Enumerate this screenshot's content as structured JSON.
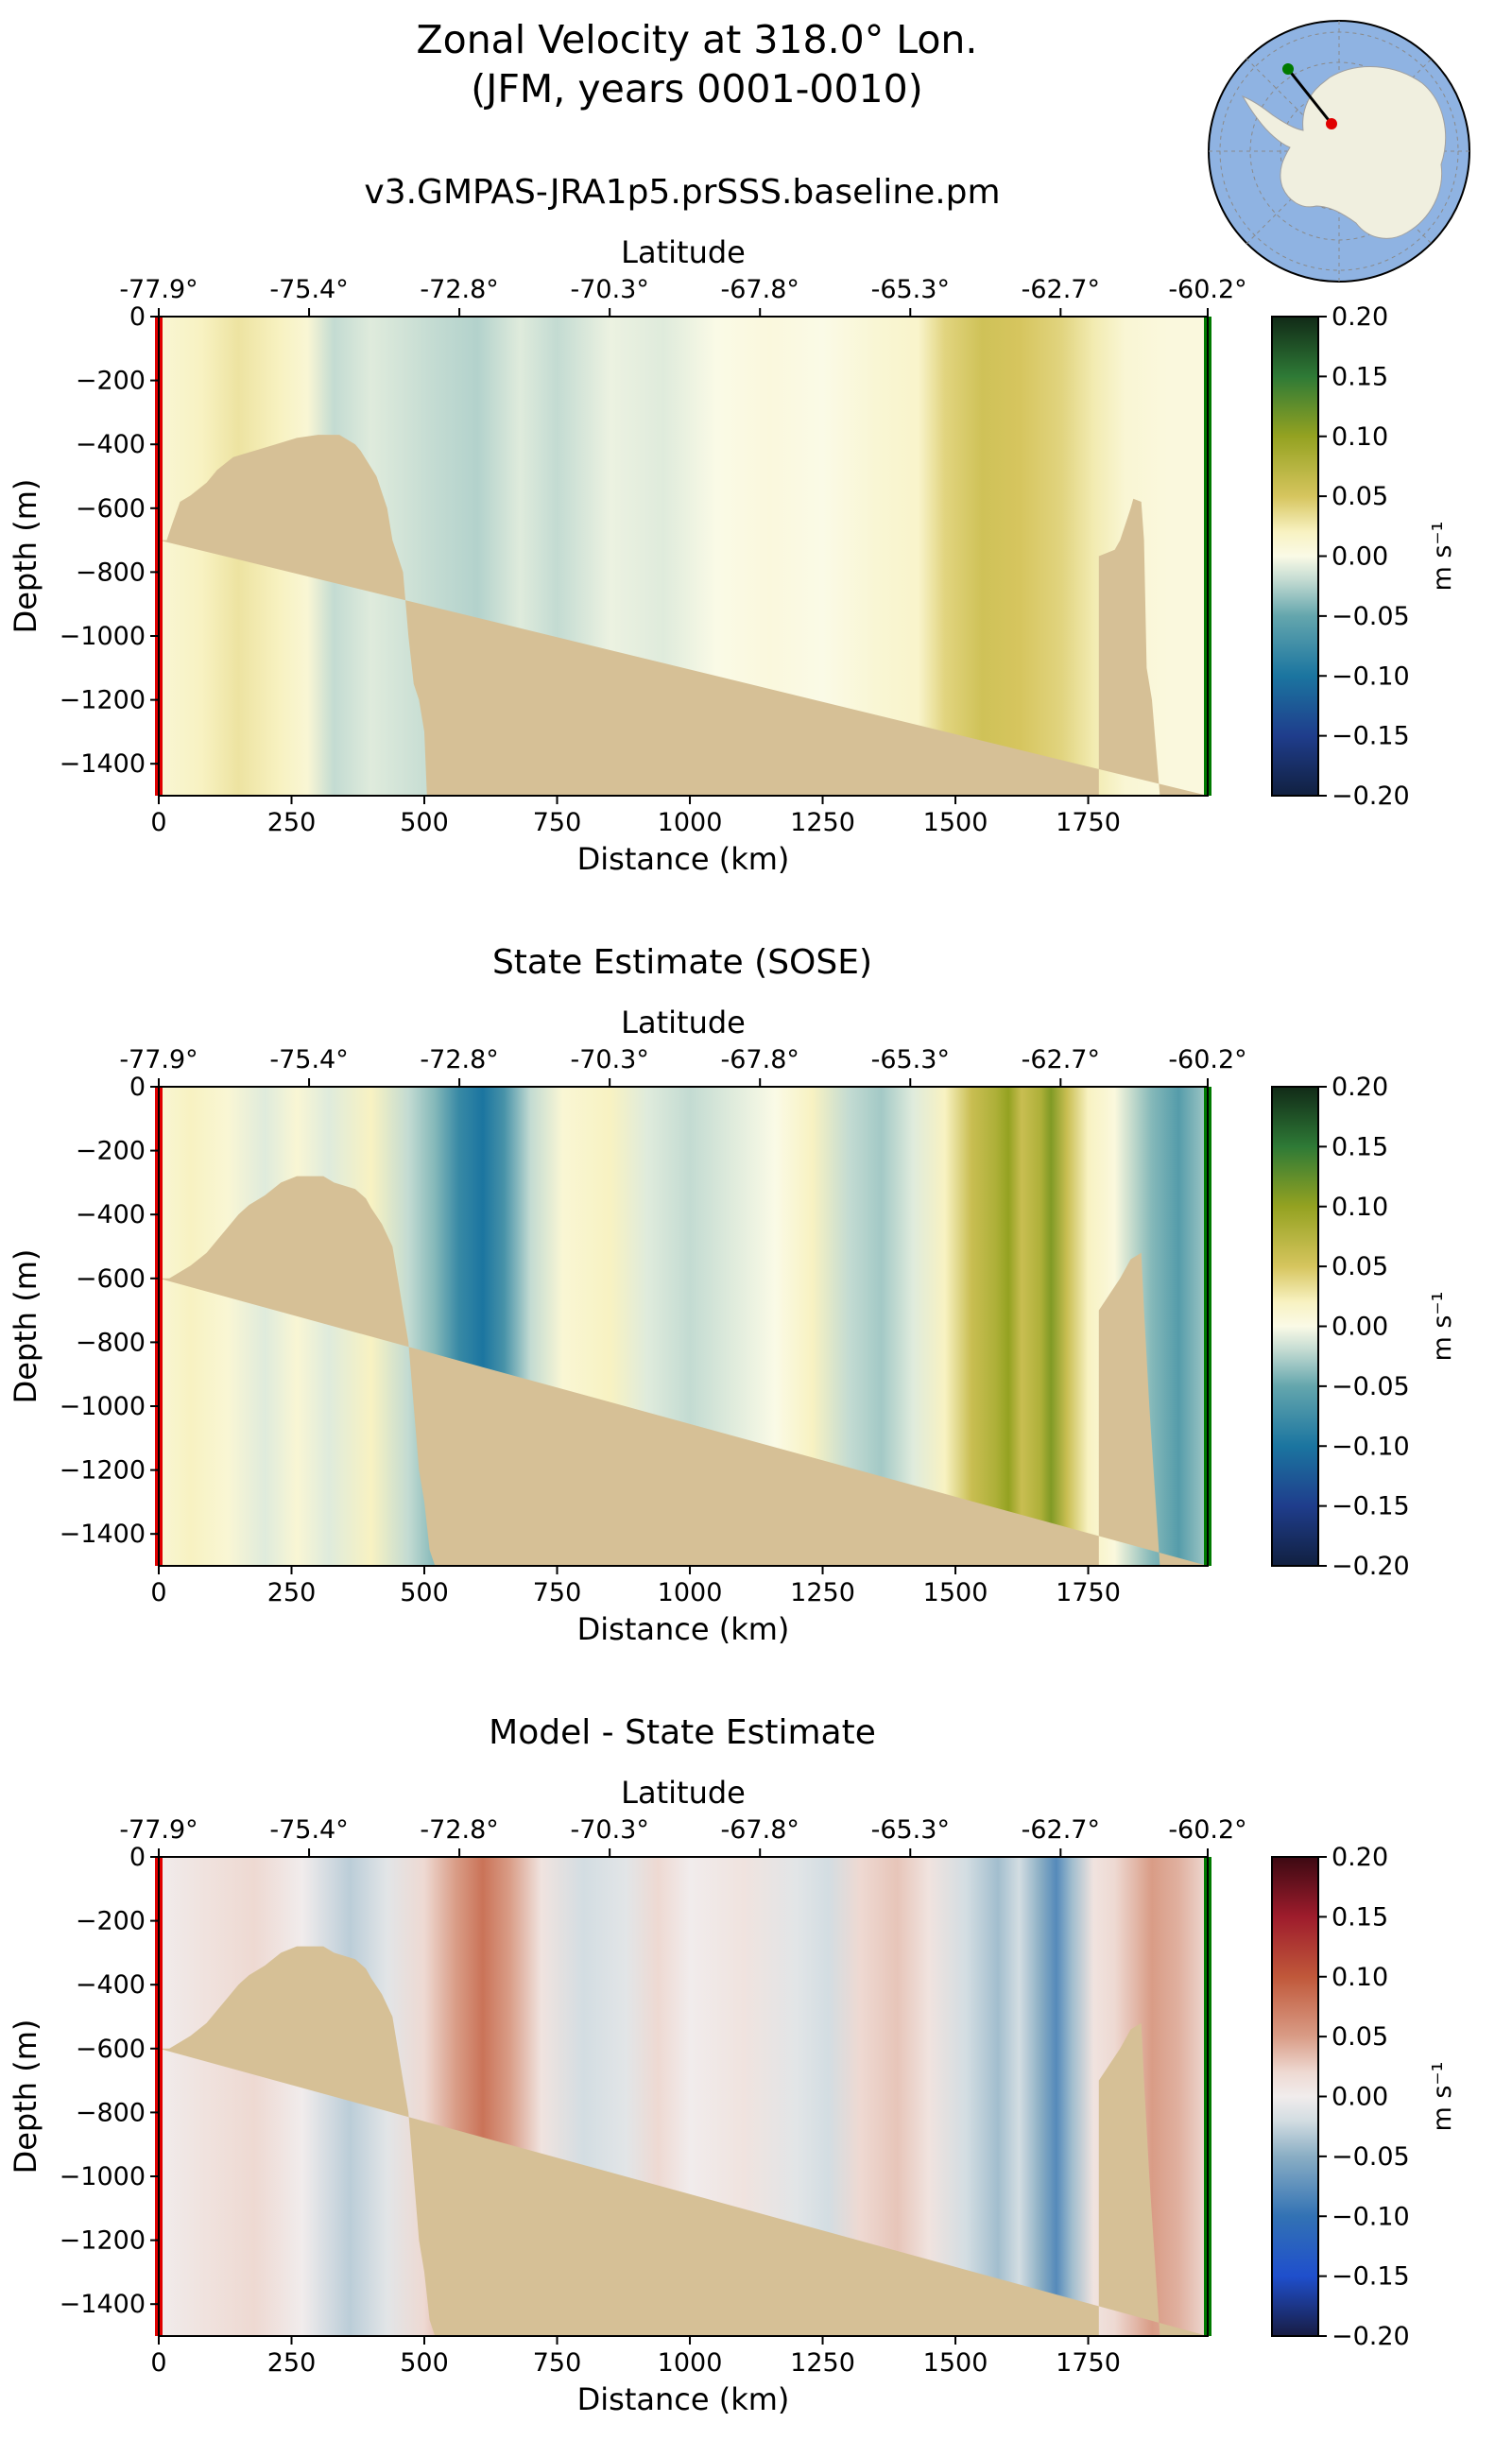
{
  "figure": {
    "title_line1": "Zonal Velocity at 318.0° Lon.",
    "title_line2": "(JFM, years 0001-0010)"
  },
  "colors": {
    "bathymetry": "#d6c096",
    "start_marker": "#e00000",
    "end_marker": "#007a00",
    "ocean": "#8fb3e2",
    "land": "#f0efdf"
  },
  "chart_data": [
    {
      "type": "heatmap",
      "panel": "model",
      "title": "v3.GMPAS-JRA1p5.prSSS.baseline.pm",
      "xlabel": "Distance (km)",
      "ylabel": "Depth (m)",
      "top_xlabel": "Latitude",
      "xlim": [
        0,
        1975
      ],
      "ylim": [
        -1500,
        0
      ],
      "x_ticks": [
        0,
        250,
        500,
        750,
        1000,
        1250,
        1500,
        1750
      ],
      "y_ticks": [
        0,
        -200,
        -400,
        -600,
        -800,
        -1000,
        -1200,
        -1400
      ],
      "lat_ticks": [
        "-77.9°",
        "-75.4°",
        "-72.8°",
        "-70.3°",
        "-67.8°",
        "-65.3°",
        "-62.7°",
        "-60.2°"
      ],
      "lat_tick_positions_km": [
        0,
        283,
        566,
        849,
        1132,
        1415,
        1698,
        1975
      ],
      "colormap": "delta",
      "colorbar": {
        "label": "m s⁻¹",
        "range": [
          -0.2,
          0.2
        ],
        "ticks": [
          0.2,
          0.15,
          0.1,
          0.05,
          0.0,
          -0.05,
          -0.1,
          -0.15,
          -0.2
        ]
      },
      "velocity_profile": [
        [
          0,
          0.01
        ],
        [
          80,
          0.02
        ],
        [
          150,
          0.03
        ],
        [
          230,
          0.02
        ],
        [
          280,
          0.01
        ],
        [
          330,
          -0.02
        ],
        [
          400,
          -0.01
        ],
        [
          460,
          -0.015
        ],
        [
          520,
          -0.02
        ],
        [
          600,
          -0.025
        ],
        [
          680,
          -0.01
        ],
        [
          750,
          -0.02
        ],
        [
          850,
          -0.005
        ],
        [
          950,
          -0.01
        ],
        [
          1050,
          0
        ],
        [
          1150,
          0.005
        ],
        [
          1250,
          0
        ],
        [
          1350,
          0.01
        ],
        [
          1430,
          0.015
        ],
        [
          1480,
          0.04
        ],
        [
          1550,
          0.055
        ],
        [
          1620,
          0.05
        ],
        [
          1700,
          0.04
        ],
        [
          1760,
          0.025
        ],
        [
          1820,
          0.01
        ],
        [
          1900,
          0.005
        ],
        [
          1975,
          0.005
        ]
      ],
      "bathymetry_depth_m": [
        [
          0,
          -700
        ],
        [
          15,
          -700
        ],
        [
          25,
          -650
        ],
        [
          40,
          -580
        ],
        [
          60,
          -560
        ],
        [
          90,
          -520
        ],
        [
          110,
          -480
        ],
        [
          140,
          -440
        ],
        [
          180,
          -420
        ],
        [
          220,
          -400
        ],
        [
          260,
          -380
        ],
        [
          300,
          -370
        ],
        [
          340,
          -370
        ],
        [
          370,
          -400
        ],
        [
          380,
          -420
        ],
        [
          410,
          -500
        ],
        [
          430,
          -600
        ],
        [
          440,
          -700
        ],
        [
          460,
          -800
        ],
        [
          470,
          -1000
        ],
        [
          480,
          -1150
        ],
        [
          490,
          -1200
        ],
        [
          500,
          -1300
        ],
        [
          505,
          -1500
        ],
        [
          1770,
          -1500
        ],
        [
          1770,
          -750
        ],
        [
          1800,
          -730
        ],
        [
          1810,
          -700
        ],
        [
          1820,
          -650
        ],
        [
          1830,
          -600
        ],
        [
          1835,
          -570
        ],
        [
          1850,
          -580
        ],
        [
          1855,
          -700
        ],
        [
          1860,
          -1100
        ],
        [
          1870,
          -1200
        ],
        [
          1885,
          -1500
        ],
        [
          1975,
          -1500
        ]
      ]
    },
    {
      "type": "heatmap",
      "panel": "sose",
      "title": "State Estimate (SOSE)",
      "xlabel": "Distance (km)",
      "ylabel": "Depth (m)",
      "top_xlabel": "Latitude",
      "xlim": [
        0,
        1975
      ],
      "ylim": [
        -1500,
        0
      ],
      "x_ticks": [
        0,
        250,
        500,
        750,
        1000,
        1250,
        1500,
        1750
      ],
      "y_ticks": [
        0,
        -200,
        -400,
        -600,
        -800,
        -1000,
        -1200,
        -1400
      ],
      "lat_ticks": [
        "-77.9°",
        "-75.4°",
        "-72.8°",
        "-70.3°",
        "-67.8°",
        "-65.3°",
        "-62.7°",
        "-60.2°"
      ],
      "lat_tick_positions_km": [
        0,
        283,
        566,
        849,
        1132,
        1415,
        1698,
        1975
      ],
      "colormap": "delta",
      "colorbar": {
        "label": "m s⁻¹",
        "range": [
          -0.2,
          0.2
        ],
        "ticks": [
          0.2,
          0.15,
          0.1,
          0.05,
          0.0,
          -0.05,
          -0.1,
          -0.15,
          -0.2
        ]
      },
      "velocity_profile": [
        [
          0,
          0.01
        ],
        [
          60,
          0.02
        ],
        [
          130,
          0.01
        ],
        [
          200,
          -0.01
        ],
        [
          260,
          0.01
        ],
        [
          320,
          -0.01
        ],
        [
          400,
          0.02
        ],
        [
          470,
          -0.02
        ],
        [
          520,
          -0.04
        ],
        [
          565,
          -0.08
        ],
        [
          610,
          -0.1
        ],
        [
          650,
          -0.07
        ],
        [
          700,
          -0.02
        ],
        [
          760,
          0.01
        ],
        [
          850,
          0.02
        ],
        [
          920,
          -0.01
        ],
        [
          1000,
          -0.02
        ],
        [
          1080,
          -0.01
        ],
        [
          1160,
          0
        ],
        [
          1230,
          0.02
        ],
        [
          1300,
          -0.02
        ],
        [
          1360,
          -0.03
        ],
        [
          1420,
          -0.01
        ],
        [
          1480,
          0.02
        ],
        [
          1530,
          0.06
        ],
        [
          1575,
          0.08
        ],
        [
          1600,
          0.1
        ],
        [
          1625,
          0.06
        ],
        [
          1660,
          0.08
        ],
        [
          1680,
          0.11
        ],
        [
          1710,
          0.06
        ],
        [
          1750,
          0.02
        ],
        [
          1800,
          0.005
        ],
        [
          1870,
          -0.04
        ],
        [
          1920,
          -0.06
        ],
        [
          1975,
          -0.03
        ]
      ],
      "bathymetry_depth_m": [
        [
          0,
          -600
        ],
        [
          20,
          -600
        ],
        [
          40,
          -580
        ],
        [
          60,
          -560
        ],
        [
          90,
          -520
        ],
        [
          110,
          -480
        ],
        [
          130,
          -440
        ],
        [
          150,
          -400
        ],
        [
          170,
          -370
        ],
        [
          200,
          -340
        ],
        [
          230,
          -300
        ],
        [
          260,
          -280
        ],
        [
          310,
          -280
        ],
        [
          330,
          -300
        ],
        [
          370,
          -320
        ],
        [
          390,
          -350
        ],
        [
          400,
          -380
        ],
        [
          420,
          -430
        ],
        [
          440,
          -500
        ],
        [
          450,
          -600
        ],
        [
          460,
          -700
        ],
        [
          470,
          -800
        ],
        [
          480,
          -1000
        ],
        [
          490,
          -1200
        ],
        [
          500,
          -1300
        ],
        [
          510,
          -1450
        ],
        [
          520,
          -1500
        ],
        [
          1770,
          -1500
        ],
        [
          1770,
          -700
        ],
        [
          1790,
          -650
        ],
        [
          1810,
          -600
        ],
        [
          1830,
          -540
        ],
        [
          1850,
          -520
        ],
        [
          1855,
          -700
        ],
        [
          1865,
          -1000
        ],
        [
          1875,
          -1250
        ],
        [
          1885,
          -1500
        ],
        [
          1975,
          -1500
        ]
      ]
    },
    {
      "type": "heatmap",
      "panel": "difference",
      "title": "Model - State Estimate",
      "xlabel": "Distance (km)",
      "ylabel": "Depth (m)",
      "top_xlabel": "Latitude",
      "xlim": [
        0,
        1975
      ],
      "ylim": [
        -1500,
        0
      ],
      "x_ticks": [
        0,
        250,
        500,
        750,
        1000,
        1250,
        1500,
        1750
      ],
      "y_ticks": [
        0,
        -200,
        -400,
        -600,
        -800,
        -1000,
        -1200,
        -1400
      ],
      "lat_ticks": [
        "-77.9°",
        "-75.4°",
        "-72.8°",
        "-70.3°",
        "-67.8°",
        "-65.3°",
        "-62.7°",
        "-60.2°"
      ],
      "lat_tick_positions_km": [
        0,
        283,
        566,
        849,
        1132,
        1415,
        1698,
        1975
      ],
      "colormap": "balance",
      "colorbar": {
        "label": "m s⁻¹",
        "range": [
          -0.2,
          0.2
        ],
        "ticks": [
          0.2,
          0.15,
          0.1,
          0.05,
          0.0,
          -0.05,
          -0.1,
          -0.15,
          -0.2
        ]
      },
      "velocity_profile": [
        [
          0,
          0
        ],
        [
          80,
          0.01
        ],
        [
          180,
          0.02
        ],
        [
          270,
          0
        ],
        [
          360,
          -0.03
        ],
        [
          430,
          -0.01
        ],
        [
          500,
          0.02
        ],
        [
          560,
          0.05
        ],
        [
          610,
          0.08
        ],
        [
          660,
          0.05
        ],
        [
          720,
          0.01
        ],
        [
          800,
          -0.02
        ],
        [
          880,
          -0.01
        ],
        [
          940,
          0.02
        ],
        [
          1000,
          0
        ],
        [
          1100,
          0.01
        ],
        [
          1200,
          -0.01
        ],
        [
          1260,
          -0.02
        ],
        [
          1320,
          0.02
        ],
        [
          1390,
          0.03
        ],
        [
          1450,
          0.01
        ],
        [
          1520,
          -0.02
        ],
        [
          1580,
          -0.04
        ],
        [
          1620,
          -0.02
        ],
        [
          1660,
          -0.05
        ],
        [
          1690,
          -0.08
        ],
        [
          1720,
          -0.04
        ],
        [
          1760,
          0.01
        ],
        [
          1800,
          0.02
        ],
        [
          1870,
          0.05
        ],
        [
          1920,
          0.04
        ],
        [
          1975,
          0.02
        ]
      ],
      "bathymetry_depth_m": [
        [
          0,
          -600
        ],
        [
          20,
          -600
        ],
        [
          40,
          -580
        ],
        [
          60,
          -560
        ],
        [
          90,
          -520
        ],
        [
          110,
          -480
        ],
        [
          130,
          -440
        ],
        [
          150,
          -400
        ],
        [
          170,
          -370
        ],
        [
          200,
          -340
        ],
        [
          230,
          -300
        ],
        [
          260,
          -280
        ],
        [
          310,
          -280
        ],
        [
          330,
          -300
        ],
        [
          370,
          -320
        ],
        [
          390,
          -350
        ],
        [
          400,
          -380
        ],
        [
          420,
          -430
        ],
        [
          440,
          -500
        ],
        [
          450,
          -600
        ],
        [
          460,
          -700
        ],
        [
          470,
          -800
        ],
        [
          480,
          -1000
        ],
        [
          490,
          -1200
        ],
        [
          500,
          -1300
        ],
        [
          510,
          -1450
        ],
        [
          520,
          -1500
        ],
        [
          1770,
          -1500
        ],
        [
          1770,
          -700
        ],
        [
          1790,
          -650
        ],
        [
          1810,
          -600
        ],
        [
          1830,
          -540
        ],
        [
          1850,
          -520
        ],
        [
          1855,
          -700
        ],
        [
          1865,
          -1000
        ],
        [
          1875,
          -1250
        ],
        [
          1885,
          -1500
        ],
        [
          1975,
          -1500
        ]
      ]
    }
  ]
}
